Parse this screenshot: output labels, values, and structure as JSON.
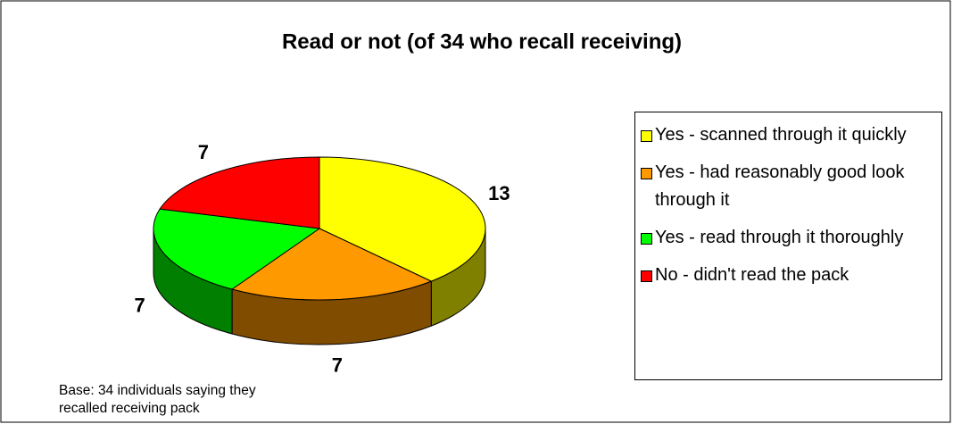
{
  "chart_data": {
    "type": "pie",
    "title": "Read or not (of 34 who recall receiving)",
    "categories": [
      "Yes - scanned through it quickly",
      "Yes - had reasonably good look through it",
      "Yes - read through it thoroughly",
      "No - didn't read the pack"
    ],
    "values": [
      13,
      7,
      7,
      7
    ],
    "colors": [
      "#ffff00",
      "#ff9900",
      "#00ff00",
      "#ff0000"
    ],
    "annotation": "Base: 34 individuals saying they recalled receiving pack"
  }
}
